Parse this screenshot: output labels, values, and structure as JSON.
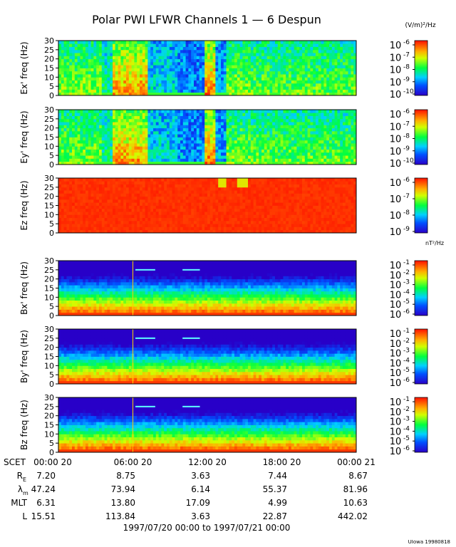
{
  "chart_data": {
    "type": "heatmap",
    "title": "Polar PWI LFWR Channels 1 — 6 Despun",
    "electric_unit": "(V/m)²/Hz",
    "magnetic_unit": "nT²/Hz",
    "time_range": "1997/07/20 00:00 to 1997/07/21 00:00",
    "credit": "UIowa 19980818",
    "freq_ticks": [
      "0",
      "5",
      "10",
      "15",
      "20",
      "25",
      "30"
    ],
    "x_ticks": [
      "00:00 20",
      "06:00 20",
      "12:00 20",
      "18:00 20",
      "00:00 21"
    ],
    "panels": [
      {
        "ylabel": "Ex' freq (Hz)",
        "ylim": [
          0,
          30
        ],
        "colorbar": [
          "10",
          "10",
          "10",
          "10",
          "10"
        ],
        "colorbar_exp": [
          "-6",
          "-7",
          "-8",
          "-9",
          "-10"
        ],
        "kind": "e"
      },
      {
        "ylabel": "Ey' freq (Hz)",
        "ylim": [
          0,
          30
        ],
        "colorbar": [
          "10",
          "10",
          "10",
          "10",
          "10"
        ],
        "colorbar_exp": [
          "-6",
          "-7",
          "-8",
          "-9",
          "-10"
        ],
        "kind": "e"
      },
      {
        "ylabel": "Ez freq (Hz)",
        "ylim": [
          0,
          30
        ],
        "colorbar": [
          "10",
          "10",
          "10",
          "10"
        ],
        "colorbar_exp": [
          "-6",
          "-7",
          "-8",
          "-9"
        ],
        "kind": "ez"
      },
      {
        "ylabel": "Bx' freq (Hz)",
        "ylim": [
          0,
          30
        ],
        "colorbar": [
          "10",
          "10",
          "10",
          "10",
          "10",
          "10"
        ],
        "colorbar_exp": [
          "-1",
          "-2",
          "-3",
          "-4",
          "-5",
          "-6"
        ],
        "kind": "b"
      },
      {
        "ylabel": "By' freq (Hz)",
        "ylim": [
          0,
          30
        ],
        "colorbar": [
          "10",
          "10",
          "10",
          "10",
          "10",
          "10"
        ],
        "colorbar_exp": [
          "-1",
          "-2",
          "-3",
          "-4",
          "-5",
          "-6"
        ],
        "kind": "b"
      },
      {
        "ylabel": "Bz freq (Hz)",
        "ylim": [
          0,
          30
        ],
        "colorbar": [
          "10",
          "10",
          "10",
          "10",
          "10",
          "10"
        ],
        "colorbar_exp": [
          "-1",
          "-2",
          "-3",
          "-4",
          "-5",
          "-6"
        ],
        "kind": "b"
      }
    ],
    "ephemeris": {
      "header": "SCET",
      "rows": [
        {
          "label": "R",
          "sub": "E",
          "values": [
            "7.20",
            "8.75",
            "3.63",
            "7.44",
            "8.67"
          ]
        },
        {
          "label": "λ",
          "sub": "m",
          "values": [
            "47.24",
            "73.94",
            "6.14",
            "55.37",
            "81.96"
          ]
        },
        {
          "label": "MLT",
          "sub": "",
          "values": [
            "6.31",
            "13.80",
            "17.09",
            "4.99",
            "10.63"
          ]
        },
        {
          "label": "L",
          "sub": "",
          "values": [
            "15.51",
            "113.84",
            "3.63",
            "22.87",
            "442.02"
          ]
        }
      ]
    }
  }
}
